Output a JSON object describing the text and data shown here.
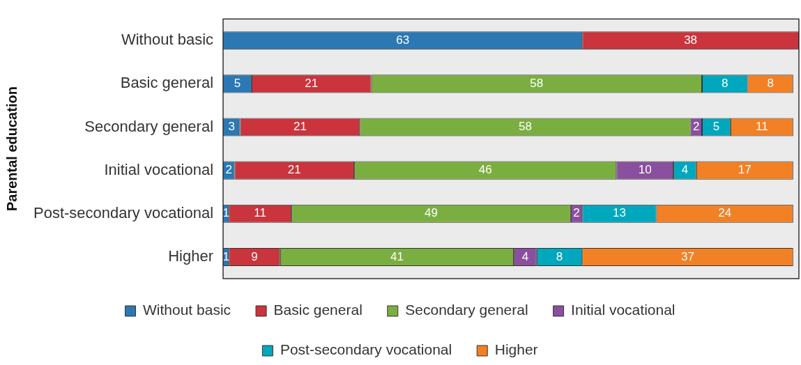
{
  "chart_data": {
    "type": "bar",
    "orientation": "horizontal",
    "stacked": true,
    "ylabel": "Parental education",
    "categories": [
      "Without basic",
      "Basic general",
      "Secondary general",
      "Initial vocational",
      "Post-secondary vocational",
      "Higher"
    ],
    "series": [
      {
        "name": "Without basic",
        "color": "#2b78b4",
        "values": [
          63,
          5,
          3,
          2,
          1,
          1
        ]
      },
      {
        "name": "Basic general",
        "color": "#c9343d",
        "values": [
          38,
          21,
          21,
          21,
          11,
          9
        ]
      },
      {
        "name": "Secondary general",
        "color": "#7bae40",
        "values": [
          null,
          58,
          58,
          46,
          49,
          41
        ]
      },
      {
        "name": "Initial vocational",
        "color": "#8a4f9e",
        "values": [
          null,
          null,
          2,
          10,
          2,
          4
        ]
      },
      {
        "name": "Post-secondary vocational",
        "color": "#00a7bd",
        "values": [
          null,
          8,
          5,
          4,
          13,
          8
        ]
      },
      {
        "name": "Higher",
        "color": "#f28025",
        "values": [
          null,
          8,
          11,
          17,
          24,
          37
        ]
      }
    ],
    "data_labels": true,
    "legend": "bottom",
    "grid": false
  }
}
